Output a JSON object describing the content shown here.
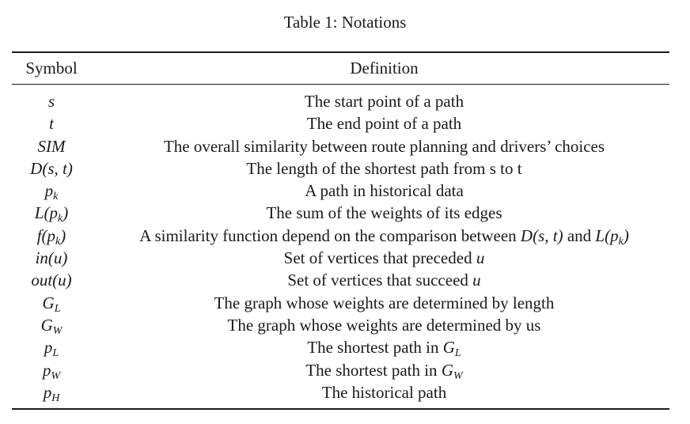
{
  "caption": "Table 1: Notations",
  "headers": {
    "symbol": "Symbol",
    "definition": "Definition"
  },
  "rows": [
    {
      "sym": "s",
      "sub": "",
      "def": "The start point of a path"
    },
    {
      "sym": "t",
      "sub": "",
      "def": "The end point of a path"
    },
    {
      "sym": "SIM",
      "sub": "",
      "def": "The overall similarity between route planning and drivers’ choices"
    },
    {
      "sym": "D(s, t)",
      "sub": "",
      "def": "The length of the shortest path from s to t"
    },
    {
      "sym": "p",
      "sub": "k",
      "def": "A path in historical data"
    },
    {
      "sym": "L(p",
      "sub": "k",
      "sym_tail": ")",
      "def": "The sum of the weights of its edges"
    },
    {
      "sym": "f(p",
      "sub": "k",
      "sym_tail": ")",
      "def_pre": "A similarity function depend on the comparison between ",
      "def_m1": "D(s, t)",
      "def_mid": " and ",
      "def_m2": "L(p",
      "def_m2_sub": "k",
      "def_m2_tail": ")"
    },
    {
      "sym": "in(u)",
      "sub": "",
      "def_pre": "Set of vertices that preceded ",
      "def_m1": "u"
    },
    {
      "sym": "out(u)",
      "sub": "",
      "def_pre": "Set of vertices that succeed ",
      "def_m1": "u"
    },
    {
      "sym": "G",
      "sub": "L",
      "def": "The graph whose weights are determined by length"
    },
    {
      "sym": "G",
      "sub": "W",
      "def": "The graph whose weights are determined by us"
    },
    {
      "sym": "p",
      "sub": "L",
      "def_pre": "The shortest path in ",
      "def_m1": "G",
      "def_m1_sub": "L"
    },
    {
      "sym": "p",
      "sub": "W",
      "def_pre": "The shortest path in ",
      "def_m1": "G",
      "def_m1_sub": "W"
    },
    {
      "sym": "p",
      "sub": "H",
      "def": "The historical path"
    }
  ]
}
